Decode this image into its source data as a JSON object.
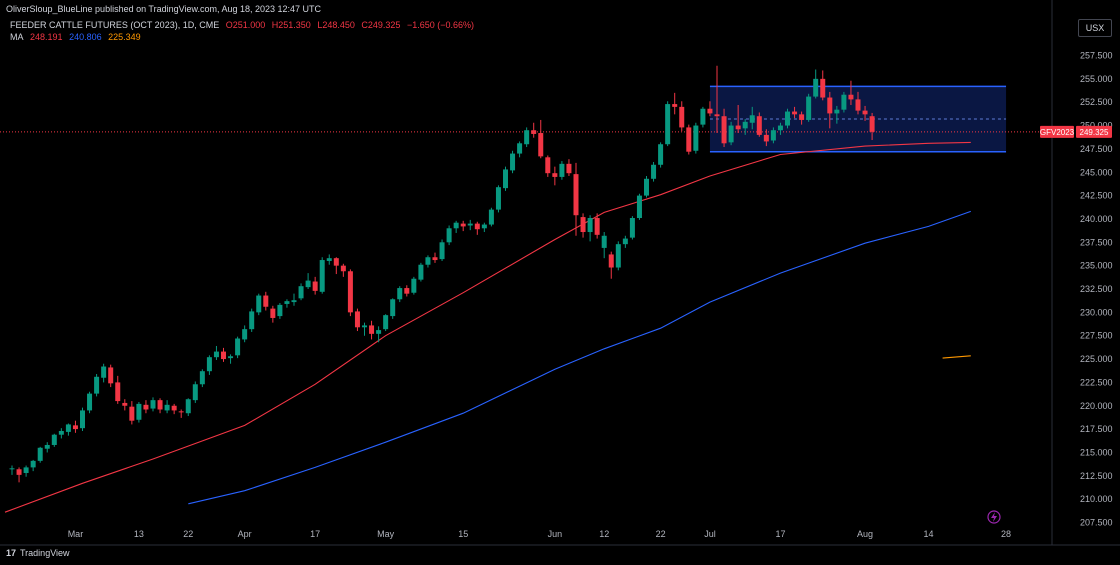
{
  "header": {
    "published_by": "OliverSloup_BlueLine published on TradingView.com, Aug 18, 2023 12:47 UTC",
    "symbol": "FEEDER CATTLE FUTURES (OCT 2023), 1D, CME",
    "ohlc": {
      "o": "O251.000",
      "h": "H251.350",
      "l": "L248.450",
      "c": "C249.325",
      "chg": "−1.650 (−0.66%)"
    },
    "ma_label": "MA",
    "ma_values": [
      "248.191",
      "240.806",
      "225.349"
    ],
    "currency": "USX"
  },
  "footer": {
    "brand": "TradingView"
  },
  "price_tag": {
    "symbol": "GFV2023",
    "price": "249.325"
  },
  "chart_data": {
    "type": "candlestick",
    "title": "FEEDER CATTLE FUTURES (OCT 2023), 1D, CME",
    "y_ticks": [
      "257.500",
      "255.000",
      "252.500",
      "250.000",
      "247.500",
      "245.000",
      "242.500",
      "240.000",
      "237.500",
      "235.000",
      "232.500",
      "230.000",
      "227.500",
      "225.000",
      "222.500",
      "220.000",
      "217.500",
      "215.000",
      "212.500",
      "210.000",
      "207.500"
    ],
    "x_ticks": [
      {
        "label": "Mar",
        "bar": 9
      },
      {
        "label": "13",
        "bar": 18
      },
      {
        "label": "22",
        "bar": 25
      },
      {
        "label": "Apr",
        "bar": 33
      },
      {
        "label": "17",
        "bar": 43
      },
      {
        "label": "May",
        "bar": 53
      },
      {
        "label": "15",
        "bar": 64
      },
      {
        "label": "Jun",
        "bar": 77
      },
      {
        "label": "12",
        "bar": 84
      },
      {
        "label": "22",
        "bar": 92
      },
      {
        "label": "Jul",
        "bar": 99
      },
      {
        "label": "17",
        "bar": 109
      },
      {
        "label": "Aug",
        "bar": 121
      },
      {
        "label": "14",
        "bar": 130
      },
      {
        "label": "28",
        "bar": 141
      }
    ],
    "ylim": [
      206.5,
      258.5
    ],
    "last_price": 249.325,
    "candles_ohlc": [
      [
        213.2,
        213.6,
        212.6,
        213.3
      ],
      [
        213.2,
        213.4,
        211.8,
        212.6
      ],
      [
        212.8,
        213.6,
        212.4,
        213.4
      ],
      [
        213.4,
        214.2,
        213.0,
        214.1
      ],
      [
        214.1,
        215.6,
        213.9,
        215.5
      ],
      [
        215.4,
        216.1,
        215.0,
        215.8
      ],
      [
        215.8,
        217.0,
        215.6,
        216.9
      ],
      [
        216.9,
        217.6,
        216.5,
        217.3
      ],
      [
        217.2,
        218.1,
        216.8,
        218.0
      ],
      [
        217.9,
        218.4,
        217.1,
        217.5
      ],
      [
        217.6,
        219.8,
        217.3,
        219.5
      ],
      [
        219.5,
        221.5,
        219.2,
        221.3
      ],
      [
        221.3,
        223.4,
        221.0,
        223.1
      ],
      [
        223.0,
        224.5,
        222.5,
        224.2
      ],
      [
        224.1,
        224.4,
        222.0,
        222.4
      ],
      [
        222.5,
        223.2,
        220.2,
        220.5
      ],
      [
        220.3,
        220.7,
        219.5,
        220.0
      ],
      [
        219.9,
        220.5,
        218.0,
        218.4
      ],
      [
        218.5,
        220.4,
        218.2,
        220.2
      ],
      [
        220.1,
        220.6,
        219.2,
        219.6
      ],
      [
        219.7,
        220.9,
        219.4,
        220.6
      ],
      [
        220.6,
        220.8,
        219.2,
        219.6
      ],
      [
        219.5,
        220.6,
        219.2,
        220.1
      ],
      [
        220.0,
        220.2,
        219.1,
        219.5
      ],
      [
        219.4,
        219.6,
        218.7,
        219.3
      ],
      [
        219.2,
        220.8,
        218.9,
        220.7
      ],
      [
        220.6,
        222.6,
        220.3,
        222.3
      ],
      [
        222.3,
        223.9,
        222.0,
        223.7
      ],
      [
        223.7,
        225.4,
        223.3,
        225.2
      ],
      [
        225.2,
        226.4,
        224.9,
        225.8
      ],
      [
        225.8,
        226.2,
        224.7,
        225.0
      ],
      [
        225.1,
        225.5,
        224.5,
        225.3
      ],
      [
        225.4,
        227.4,
        225.1,
        227.2
      ],
      [
        227.1,
        228.6,
        226.8,
        228.2
      ],
      [
        228.2,
        230.4,
        227.9,
        230.1
      ],
      [
        230.0,
        232.0,
        229.7,
        231.8
      ],
      [
        231.8,
        232.2,
        230.2,
        230.6
      ],
      [
        230.4,
        230.7,
        228.9,
        229.4
      ],
      [
        229.6,
        231.0,
        229.3,
        230.8
      ],
      [
        230.9,
        231.4,
        230.5,
        231.2
      ],
      [
        231.1,
        232.0,
        230.7,
        231.3
      ],
      [
        231.5,
        233.1,
        231.3,
        232.8
      ],
      [
        232.7,
        234.2,
        232.5,
        233.4
      ],
      [
        233.3,
        233.8,
        231.9,
        232.3
      ],
      [
        232.2,
        235.9,
        232.0,
        235.6
      ],
      [
        235.5,
        236.2,
        235.1,
        235.8
      ],
      [
        235.8,
        235.9,
        234.1,
        235.0
      ],
      [
        235.0,
        235.2,
        233.8,
        234.4
      ],
      [
        234.4,
        234.6,
        229.6,
        230.0
      ],
      [
        230.1,
        230.4,
        228.0,
        228.4
      ],
      [
        228.4,
        228.9,
        227.5,
        228.6
      ],
      [
        228.6,
        229.1,
        227.1,
        227.7
      ],
      [
        227.7,
        228.5,
        226.8,
        228.1
      ],
      [
        228.2,
        229.8,
        228.0,
        229.7
      ],
      [
        229.6,
        231.5,
        229.3,
        231.4
      ],
      [
        231.4,
        232.8,
        231.1,
        232.6
      ],
      [
        232.6,
        232.9,
        231.7,
        232.0
      ],
      [
        232.1,
        233.8,
        231.9,
        233.6
      ],
      [
        233.5,
        235.3,
        233.3,
        235.1
      ],
      [
        235.1,
        236.1,
        234.8,
        235.9
      ],
      [
        235.9,
        236.4,
        235.3,
        235.6
      ],
      [
        235.7,
        237.8,
        235.5,
        237.5
      ],
      [
        237.5,
        239.3,
        237.2,
        239.0
      ],
      [
        239.0,
        239.8,
        238.5,
        239.6
      ],
      [
        239.5,
        239.8,
        238.7,
        239.2
      ],
      [
        239.3,
        239.9,
        238.8,
        239.5
      ],
      [
        239.5,
        239.7,
        238.3,
        238.9
      ],
      [
        239.0,
        239.6,
        238.6,
        239.4
      ],
      [
        239.4,
        241.2,
        239.2,
        241.0
      ],
      [
        241.0,
        243.6,
        240.7,
        243.4
      ],
      [
        243.3,
        245.6,
        243.0,
        245.3
      ],
      [
        245.2,
        247.3,
        244.9,
        247.0
      ],
      [
        247.0,
        248.3,
        246.6,
        248.1
      ],
      [
        248.0,
        249.8,
        247.7,
        249.5
      ],
      [
        249.5,
        250.3,
        248.7,
        249.1
      ],
      [
        249.2,
        250.6,
        246.5,
        246.7
      ],
      [
        246.6,
        246.8,
        244.5,
        244.9
      ],
      [
        244.9,
        245.6,
        243.6,
        244.5
      ],
      [
        244.5,
        246.2,
        244.2,
        245.9
      ],
      [
        245.9,
        246.4,
        244.6,
        244.9
      ],
      [
        244.8,
        246.0,
        238.2,
        240.4
      ],
      [
        240.2,
        240.6,
        238.0,
        238.6
      ],
      [
        238.6,
        240.4,
        237.6,
        240.1
      ],
      [
        240.1,
        240.6,
        237.9,
        238.3
      ],
      [
        236.9,
        238.6,
        235.8,
        238.2
      ],
      [
        236.2,
        236.5,
        233.6,
        234.8
      ],
      [
        234.8,
        237.6,
        234.5,
        237.3
      ],
      [
        237.3,
        238.2,
        236.9,
        237.9
      ],
      [
        238.0,
        240.3,
        237.8,
        240.1
      ],
      [
        240.1,
        242.7,
        239.9,
        242.5
      ],
      [
        242.5,
        244.6,
        242.3,
        244.3
      ],
      [
        244.3,
        246.1,
        244.0,
        245.8
      ],
      [
        245.8,
        248.2,
        245.5,
        248.0
      ],
      [
        248.0,
        252.6,
        247.8,
        252.3
      ],
      [
        252.3,
        253.5,
        251.2,
        252.0
      ],
      [
        252.0,
        252.6,
        249.4,
        249.8
      ],
      [
        249.8,
        250.1,
        246.9,
        247.2
      ],
      [
        247.3,
        250.3,
        247.0,
        250.0
      ],
      [
        250.1,
        252.0,
        249.8,
        251.8
      ],
      [
        251.8,
        252.6,
        251.0,
        251.3
      ],
      [
        251.2,
        256.4,
        249.2,
        251.0
      ],
      [
        251.0,
        251.8,
        247.7,
        248.1
      ],
      [
        248.2,
        250.4,
        247.9,
        250.0
      ],
      [
        250.0,
        252.2,
        249.2,
        249.6
      ],
      [
        249.7,
        250.7,
        249.0,
        250.4
      ],
      [
        250.3,
        252.0,
        249.6,
        251.1
      ],
      [
        251.0,
        251.4,
        248.8,
        249.0
      ],
      [
        249.0,
        249.6,
        247.8,
        248.3
      ],
      [
        248.4,
        249.8,
        248.1,
        249.5
      ],
      [
        249.5,
        250.3,
        249.0,
        250.0
      ],
      [
        250.0,
        251.8,
        249.7,
        251.5
      ],
      [
        251.5,
        252.0,
        250.8,
        251.2
      ],
      [
        251.2,
        251.5,
        250.1,
        250.6
      ],
      [
        250.6,
        253.4,
        250.4,
        253.1
      ],
      [
        253.1,
        256.0,
        252.9,
        255.0
      ],
      [
        255.0,
        255.9,
        252.7,
        253.0
      ],
      [
        253.0,
        253.6,
        249.7,
        251.3
      ],
      [
        251.3,
        252.1,
        250.2,
        251.7
      ],
      [
        251.7,
        253.6,
        251.4,
        253.3
      ],
      [
        253.3,
        254.8,
        252.2,
        252.8
      ],
      [
        252.8,
        253.6,
        251.2,
        251.6
      ],
      [
        251.6,
        252.1,
        250.5,
        251.2
      ],
      [
        251.0,
        251.35,
        248.45,
        249.325
      ]
    ],
    "moving_averages": [
      {
        "name": "MA",
        "color": "#f23645",
        "last": 248.191,
        "points": [
          [
            -1,
            208.6
          ],
          [
            10,
            211.7
          ],
          [
            20,
            214.3
          ],
          [
            33,
            217.9
          ],
          [
            43,
            222.3
          ],
          [
            53,
            227.5
          ],
          [
            64,
            232.1
          ],
          [
            77,
            237.8
          ],
          [
            84,
            240.7
          ],
          [
            92,
            242.6
          ],
          [
            99,
            244.6
          ],
          [
            109,
            246.9
          ],
          [
            121,
            247.8
          ],
          [
            130,
            248.1
          ],
          [
            136,
            248.191
          ]
        ]
      },
      {
        "name": "MA",
        "color": "#2962ff",
        "last": 240.806,
        "points": [
          [
            25,
            209.5
          ],
          [
            33,
            210.9
          ],
          [
            43,
            213.4
          ],
          [
            53,
            216.1
          ],
          [
            64,
            219.2
          ],
          [
            77,
            223.9
          ],
          [
            84,
            226.1
          ],
          [
            92,
            228.3
          ],
          [
            99,
            231.1
          ],
          [
            109,
            234.2
          ],
          [
            121,
            237.4
          ],
          [
            130,
            239.2
          ],
          [
            136,
            240.806
          ]
        ]
      },
      {
        "name": "MA",
        "color": "#ff9800",
        "last": 225.349,
        "points": [
          [
            132,
            225.1
          ],
          [
            136,
            225.349
          ]
        ]
      }
    ],
    "channel": {
      "start_bar": 99,
      "end_bar": 141,
      "top": 254.2,
      "bottom": 247.2,
      "mid": 250.7
    },
    "grid": false,
    "colors": {
      "up": "#089981",
      "down": "#f23645",
      "channel_border": "#2962ff",
      "channel_fill": "#0b1a4a",
      "axis_text": "#b2b5be",
      "price_line": "#f23645"
    }
  }
}
